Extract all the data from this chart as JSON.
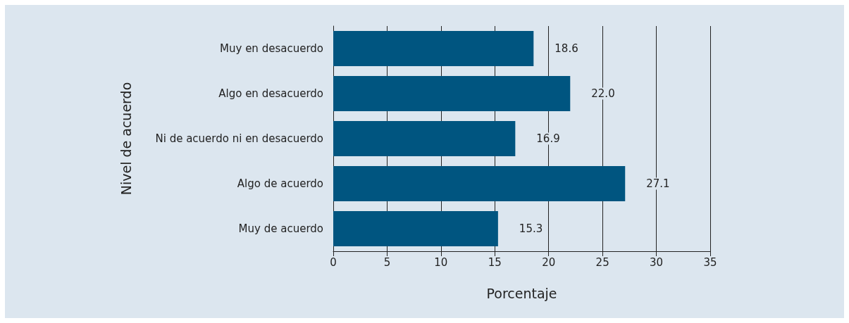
{
  "chart_data": {
    "type": "bar",
    "orientation": "horizontal",
    "xlabel": "Porcentaje",
    "ylabel": "Nivel de acuerdo",
    "categories": [
      "Muy en desacuerdo",
      "Algo en desacuerdo",
      "Ni de acuerdo ni en desacuerdo",
      "Algo de acuerdo",
      "Muy de acuerdo"
    ],
    "values": [
      18.6,
      22.0,
      16.9,
      27.1,
      15.3
    ],
    "value_labels": [
      "18.6",
      "22.0",
      "16.9",
      "27.1",
      "15.3"
    ],
    "color": "#005580",
    "xlim": [
      0,
      35
    ],
    "xticks": [
      0,
      5,
      10,
      15,
      20,
      25,
      30,
      35
    ],
    "grid": "x"
  }
}
